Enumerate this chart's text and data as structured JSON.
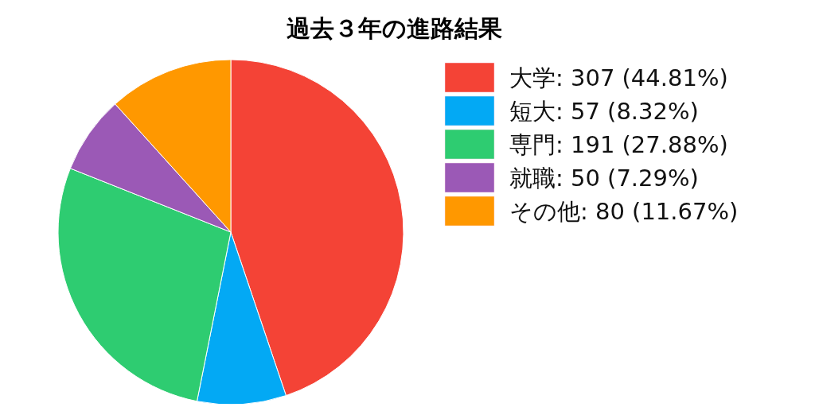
{
  "chart_data": {
    "type": "pie",
    "title": "過去３年の進路結果",
    "categories": [
      "大学: 307 (44.81%)",
      "短大: 57 (8.32%)",
      "専門: 191 (27.88%)",
      "就職: 50 (7.29%)",
      "その他: 80 (11.67%)"
    ],
    "values": [
      307,
      57,
      191,
      50,
      80
    ],
    "colors": [
      "#f44336",
      "#03a9f4",
      "#2ecc71",
      "#9b59b6",
      "#ff9800"
    ],
    "legend": "right"
  }
}
